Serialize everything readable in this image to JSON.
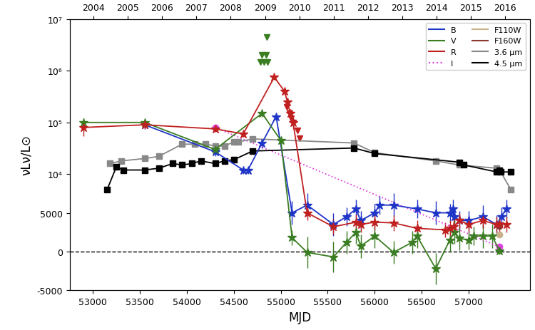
{
  "chart_data": {
    "type": "line",
    "x_label": "MJD",
    "y_label": "νLν/L⊙",
    "log": "y",
    "legend": "upper right",
    "xlim": [
      52750,
      57650
    ],
    "xticks": [
      53000,
      53500,
      54000,
      54500,
      55000,
      55500,
      56000,
      56500,
      57000
    ],
    "x2ticks": [
      {
        "value": 53005,
        "label": "2004"
      },
      {
        "value": 53371,
        "label": "2005"
      },
      {
        "value": 53736,
        "label": "2006"
      },
      {
        "value": 54101,
        "label": "2007"
      },
      {
        "value": 54466,
        "label": "2008"
      },
      {
        "value": 54832,
        "label": "2009"
      },
      {
        "value": 55197,
        "label": "2010"
      },
      {
        "value": 55562,
        "label": "2011"
      },
      {
        "value": 55927,
        "label": "2012"
      },
      {
        "value": 56293,
        "label": "2013"
      },
      {
        "value": 56658,
        "label": "2014"
      },
      {
        "value": 57023,
        "label": "2015"
      },
      {
        "value": 57388,
        "label": "2016"
      }
    ],
    "ylim": [
      -5000,
      10000000
    ],
    "yticks": [
      -5000,
      0,
      5000,
      {
        "value": 10000,
        "label": "10⁴"
      },
      {
        "value": 100000,
        "label": "10⁵"
      },
      {
        "value": 1000000,
        "label": "10⁶"
      },
      {
        "value": 10000000,
        "label": "10⁷"
      }
    ],
    "reference_lines": [
      {
        "y": 0,
        "color": "#000000",
        "line_style": "dashed"
      }
    ],
    "series": [
      {
        "name": "B",
        "color": "#1f35c8",
        "marker": "star",
        "line_style": "solid",
        "x": [
          53550,
          54300,
          54600,
          54650,
          54800,
          54950,
          55120,
          55280,
          55560,
          55700,
          55800,
          55850,
          56000,
          56050,
          56200,
          56450,
          56650,
          56800,
          56830,
          56850,
          56900,
          57000,
          57150,
          57300,
          57350,
          57400
        ],
        "values": [
          90000,
          27000,
          12000,
          12000,
          40000,
          130000,
          5000,
          6000,
          3500,
          4500,
          5500,
          4000,
          5000,
          6000,
          6000,
          5500,
          5000,
          5000,
          5500,
          4500,
          4000,
          4000,
          4500,
          3500,
          4500,
          5500
        ],
        "errors": [
          15000,
          5000,
          2000,
          2000,
          8000,
          20000,
          1500,
          1500,
          1500,
          1200,
          1200,
          1200,
          1200,
          1200,
          1500,
          1200,
          1500,
          1200,
          1200,
          1200,
          1200,
          1200,
          1500,
          1200,
          1200,
          1200
        ]
      },
      {
        "name": "V",
        "color": "#3a7d22",
        "marker": "star",
        "line_style": "solid",
        "x": [
          52900,
          53550,
          54300,
          54800,
          55000,
          55120,
          55280,
          55560,
          55700,
          55800,
          55850,
          56000,
          56200,
          56400,
          56450,
          56650,
          56800,
          56850,
          56900,
          57000,
          57050,
          57150,
          57250,
          57330
        ],
        "values": [
          100000,
          100000,
          30000,
          150000,
          45000,
          1800,
          -100,
          -700,
          1200,
          2500,
          700,
          2000,
          -100,
          1200,
          2000,
          -2200,
          1500,
          2500,
          1700,
          1500,
          2000,
          2000,
          2000,
          100
        ],
        "errors": [
          20000,
          15000,
          5000,
          20000,
          8000,
          1000,
          2000,
          2000,
          1500,
          1500,
          1500,
          1500,
          1500,
          1500,
          1500,
          2000,
          1500,
          1500,
          1500,
          1200,
          1200,
          1500,
          1500,
          500
        ],
        "upper_limits": {
          "x": [
            54780,
            54800,
            54820,
            54840,
            54850,
            54860
          ],
          "values": [
            1500000,
            2000000,
            1500000,
            2000000,
            4500000,
            1500000
          ]
        }
      },
      {
        "name": "R",
        "color": "#c02020",
        "marker": "star",
        "line_style": "solid",
        "x": [
          52900,
          53550,
          54300,
          54600,
          54930,
          55040,
          55070,
          55100,
          55130,
          55280,
          55560,
          55800,
          55850,
          56000,
          56200,
          56450,
          56750,
          56800,
          56840,
          56900,
          57000,
          57150,
          57300,
          57330,
          57400
        ],
        "values": [
          80000,
          90000,
          75000,
          60000,
          750000,
          400000,
          250000,
          150000,
          100000,
          5000,
          3200,
          3800,
          3500,
          3800,
          3700,
          3000,
          2800,
          3000,
          3200,
          4000,
          3500,
          4000,
          3500,
          3600,
          3500
        ],
        "errors": [
          25000,
          15000,
          10000,
          8000,
          80000,
          60000,
          40000,
          30000,
          25000,
          1000,
          1000,
          1000,
          1000,
          1000,
          1000,
          1000,
          1000,
          1000,
          1000,
          1000,
          1000,
          1000,
          1000,
          1000,
          1000
        ],
        "upper_limits": {
          "x": [
            55060,
            55090,
            55110,
            55130,
            55180,
            55200
          ],
          "values": [
            200000,
            150000,
            120000,
            100000,
            70000,
            50000
          ]
        }
      },
      {
        "name": "I",
        "color": "#e040e0",
        "marker": "circle",
        "line_style": "dotted",
        "x": [
          54300,
          57330
        ],
        "values": [
          80000,
          600
        ]
      },
      {
        "name": "F110W",
        "color": "#c8b08a",
        "marker": "circle",
        "line_style": "solid",
        "x": [
          57330
        ],
        "values": [
          2200
        ]
      },
      {
        "name": "F160W",
        "color": "#8b3a2e",
        "marker": "circle",
        "line_style": "solid",
        "x": [
          57330
        ],
        "values": [
          3300
        ]
      },
      {
        "name": "3.6 μm",
        "color": "#888888",
        "marker": "square",
        "line_style": "solid",
        "x": [
          53180,
          53300,
          53550,
          53700,
          53950,
          54080,
          54200,
          54300,
          54400,
          54500,
          54550,
          54700,
          55780,
          56000,
          56650,
          56900,
          57300,
          57330,
          57450
        ],
        "values": [
          16000,
          18000,
          20000,
          22000,
          38000,
          38000,
          38000,
          35000,
          35000,
          42000,
          42000,
          48000,
          40000,
          26000,
          18000,
          15000,
          13000,
          12000,
          8000
        ]
      },
      {
        "name": "4.5 μm",
        "color": "#000000",
        "marker": "square",
        "line_style": "solid",
        "x": [
          53150,
          53250,
          53320,
          53550,
          53700,
          53850,
          53950,
          54050,
          54150,
          54300,
          54400,
          54500,
          54700,
          55780,
          56000,
          56900,
          56950,
          57300,
          57330,
          57340,
          57450
        ],
        "values": [
          8000,
          14000,
          12000,
          12000,
          13000,
          16000,
          15000,
          16000,
          18000,
          16000,
          18000,
          19000,
          28000,
          32000,
          25000,
          17000,
          15000,
          11000,
          12000,
          11000,
          11000
        ]
      }
    ]
  }
}
